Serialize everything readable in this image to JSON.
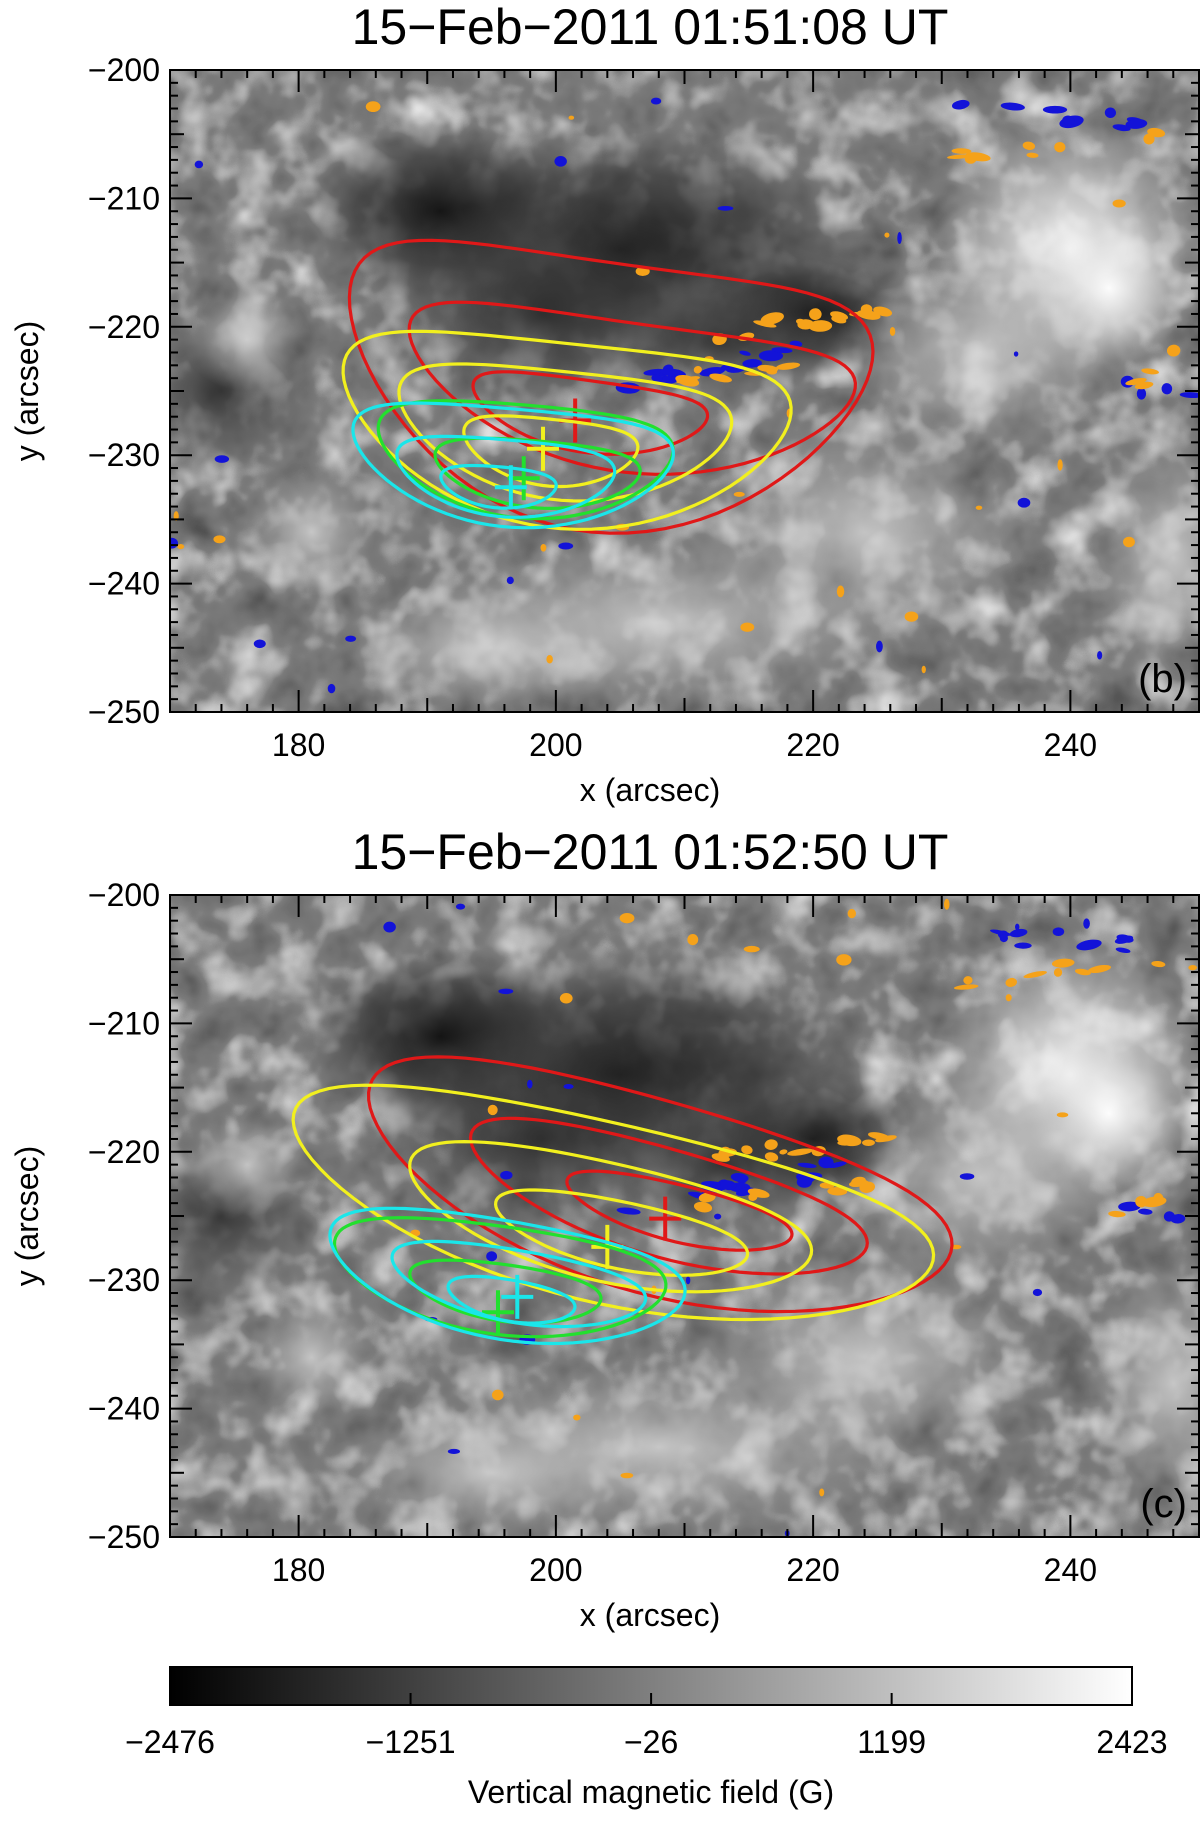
{
  "figure": {
    "colorbar": {
      "ticks": [
        -2476,
        -1251,
        -26,
        1199,
        2423
      ],
      "tick_labels": [
        "−2476",
        "−1251",
        "−26",
        "1199",
        "2423"
      ],
      "label": "Vertical magnetic field (G)",
      "range": [
        -2476,
        2423
      ],
      "colormap": "grayscale black-to-white"
    }
  },
  "chart_data": [
    {
      "type": "contour",
      "panel_label": "(b)",
      "title": "15−Feb−2011 01:51:08 UT",
      "xlabel": "x (arcsec)",
      "ylabel": "y (arcsec)",
      "xlim": [
        170,
        250
      ],
      "ylim": [
        -250,
        -200
      ],
      "x_ticks": [
        180,
        200,
        220,
        240
      ],
      "x_tick_labels": [
        "180",
        "200",
        "220",
        "240"
      ],
      "y_ticks": [
        -200,
        -210,
        -220,
        -230,
        -240,
        -250
      ],
      "y_tick_labels": [
        "−200",
        "−210",
        "−220",
        "−230",
        "−240",
        "−250"
      ],
      "background": "vertical magnetic field (grayscale)",
      "contour_sets": [
        {
          "color": "#e01818",
          "centroid": [
            201.5,
            -227.3
          ],
          "levels": [
            {
              "cx": 203.5,
              "cy": -225.5,
              "rx": 20.5,
              "ry": 10.5,
              "rot": -8,
              "bend": 0.55
            },
            {
              "cx": 205.5,
              "cy": -225.5,
              "rx": 17.5,
              "ry": 5.8,
              "rot": -8,
              "bend": 0.55
            },
            {
              "cx": 202.5,
              "cy": -227.0,
              "rx": 9.2,
              "ry": 2.8,
              "rot": -8,
              "bend": 0.45
            }
          ]
        },
        {
          "color": "#f2f01e",
          "centroid": [
            199.0,
            -229.5
          ],
          "levels": [
            {
              "cx": 200.5,
              "cy": -228.5,
              "rx": 17.5,
              "ry": 7.2,
              "rot": -6,
              "bend": 0.5
            },
            {
              "cx": 200.5,
              "cy": -228.5,
              "rx": 13.0,
              "ry": 5.0,
              "rot": -6,
              "bend": 0.45
            },
            {
              "cx": 199.5,
              "cy": -229.8,
              "rx": 6.8,
              "ry": 2.6,
              "rot": -6,
              "bend": 0.4
            }
          ]
        },
        {
          "color": "#22e02e",
          "centroid": [
            197.5,
            -231.8
          ],
          "levels": [
            {
              "cx": 197.5,
              "cy": -230.5,
              "rx": 11.5,
              "ry": 4.4,
              "rot": -5,
              "bend": 0.4
            },
            {
              "cx": 198.5,
              "cy": -231.5,
              "rx": 8.0,
              "ry": 2.6,
              "rot": -5,
              "bend": 0.35
            }
          ]
        },
        {
          "color": "#1ae6ea",
          "centroid": [
            196.5,
            -232.5
          ],
          "levels": [
            {
              "cx": 196.5,
              "cy": -231.0,
              "rx": 12.5,
              "ry": 4.6,
              "rot": -5,
              "bend": 0.45
            },
            {
              "cx": 196.0,
              "cy": -231.8,
              "rx": 8.5,
              "ry": 3.0,
              "rot": -5,
              "bend": 0.4
            },
            {
              "cx": 195.5,
              "cy": -232.5,
              "rx": 4.5,
              "ry": 1.6,
              "rot": -5,
              "bend": 0.3
            }
          ]
        }
      ]
    },
    {
      "type": "contour",
      "panel_label": "(c)",
      "title": "15−Feb−2011 01:52:50 UT",
      "xlabel": "x (arcsec)",
      "ylabel": "y (arcsec)",
      "xlim": [
        170,
        250
      ],
      "ylim": [
        -250,
        -200
      ],
      "x_ticks": [
        180,
        200,
        220,
        240
      ],
      "x_tick_labels": [
        "180",
        "200",
        "220",
        "240"
      ],
      "y_ticks": [
        -200,
        -210,
        -220,
        -230,
        -240,
        -250
      ],
      "y_tick_labels": [
        "−200",
        "−210",
        "−220",
        "−230",
        "−240",
        "−250"
      ],
      "background": "vertical magnetic field (grayscale)",
      "contour_sets": [
        {
          "color": "#e01818",
          "centroid": [
            208.5,
            -225.2
          ],
          "levels": [
            {
              "cx": 207.5,
              "cy": -223.5,
              "rx": 23.5,
              "ry": 7.5,
              "rot": -16,
              "bend": 0.3
            },
            {
              "cx": 208.5,
              "cy": -224.0,
              "rx": 16.0,
              "ry": 4.2,
              "rot": -16,
              "bend": 0.25
            },
            {
              "cx": 209.5,
              "cy": -224.8,
              "rx": 9.0,
              "ry": 2.2,
              "rot": -14,
              "bend": 0.2
            }
          ]
        },
        {
          "color": "#f2f01e",
          "centroid": [
            204.0,
            -227.4
          ],
          "levels": [
            {
              "cx": 204.0,
              "cy": -224.8,
              "rx": 25.5,
              "ry": 7.0,
              "rot": -13,
              "bend": 0.3
            },
            {
              "cx": 204.0,
              "cy": -225.5,
              "rx": 16.0,
              "ry": 4.6,
              "rot": -13,
              "bend": 0.25
            },
            {
              "cx": 205.0,
              "cy": -226.5,
              "rx": 10.0,
              "ry": 2.6,
              "rot": -12,
              "bend": 0.2
            }
          ]
        },
        {
          "color": "#22e02e",
          "centroid": [
            195.5,
            -232.5
          ],
          "levels": [
            {
              "cx": 195.5,
              "cy": -230.0,
              "rx": 13.0,
              "ry": 4.2,
              "rot": -8,
              "bend": 0.3
            },
            {
              "cx": 196.0,
              "cy": -231.0,
              "rx": 7.5,
              "ry": 2.2,
              "rot": -8,
              "bend": 0.25
            }
          ]
        },
        {
          "color": "#1ae6ea",
          "centroid": [
            197.0,
            -231.3
          ],
          "levels": [
            {
              "cx": 196.0,
              "cy": -230.0,
              "rx": 14.0,
              "ry": 4.6,
              "rot": -10,
              "bend": 0.3
            },
            {
              "cx": 197.0,
              "cy": -230.5,
              "rx": 10.0,
              "ry": 2.8,
              "rot": -10,
              "bend": 0.25
            },
            {
              "cx": 196.5,
              "cy": -231.6,
              "rx": 5.0,
              "ry": 1.6,
              "rot": -10,
              "bend": 0.2
            }
          ]
        }
      ]
    }
  ]
}
